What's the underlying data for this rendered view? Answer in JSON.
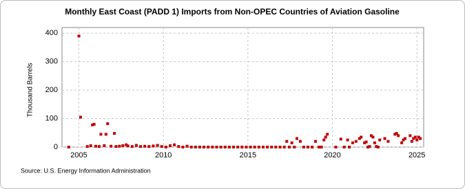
{
  "chart_data": {
    "type": "scatter",
    "title": "Monthly East Coast (PADD 1) Imports from Non-OPEC Countries of Aviation Gasoline",
    "y_label": "Thousand Barrels",
    "source": "Source: U.S. Energy Information Administration",
    "color": "#c00000",
    "grid": true,
    "xlim": [
      2004.0,
      2025.4
    ],
    "xticks": [
      2005,
      2010,
      2015,
      2020,
      2025
    ],
    "ylim": [
      0,
      420
    ],
    "yticks": [
      0,
      100,
      200,
      300,
      400
    ],
    "x": [
      2004.4,
      2005.0,
      2005.1,
      2005.5,
      2005.7,
      2005.8,
      2005.9,
      2006.0,
      2006.2,
      2006.3,
      2006.5,
      2006.6,
      2006.7,
      2006.9,
      2007.1,
      2007.2,
      2007.4,
      2007.6,
      2007.8,
      2007.9,
      2008.15,
      2008.4,
      2008.65,
      2008.9,
      2009.15,
      2009.4,
      2009.65,
      2009.9,
      2010.15,
      2010.4,
      2010.65,
      2010.9,
      2011.15,
      2011.4,
      2011.65,
      2011.9,
      2012.15,
      2012.4,
      2012.65,
      2012.9,
      2013.15,
      2013.4,
      2013.65,
      2013.9,
      2014.15,
      2014.4,
      2014.65,
      2014.9,
      2015.15,
      2015.4,
      2015.65,
      2015.9,
      2016.15,
      2016.4,
      2016.65,
      2016.9,
      2017.15,
      2017.3,
      2017.45,
      2017.6,
      2017.75,
      2017.9,
      2018.1,
      2018.3,
      2018.55,
      2018.8,
      2019.0,
      2019.2,
      2019.35,
      2019.5,
      2019.6,
      2019.7,
      2020.2,
      2020.5,
      2020.7,
      2020.9,
      2021.0,
      2021.2,
      2021.4,
      2021.6,
      2021.7,
      2021.9,
      2022.0,
      2022.1,
      2022.2,
      2022.3,
      2022.4,
      2022.5,
      2022.6,
      2022.7,
      2022.8,
      2023.1,
      2023.3,
      2023.7,
      2023.8,
      2023.9,
      2024.1,
      2024.2,
      2024.3,
      2024.6,
      2024.7,
      2024.8,
      2024.9,
      2025.0,
      2025.1,
      2025.2
    ],
    "values": [
      0,
      390,
      105,
      2,
      5,
      78,
      80,
      3,
      2,
      45,
      5,
      45,
      82,
      3,
      48,
      2,
      3,
      5,
      8,
      4,
      2,
      6,
      2,
      3,
      2,
      4,
      6,
      2,
      0,
      5,
      8,
      2,
      0,
      3,
      0,
      0,
      0,
      0,
      0,
      0,
      0,
      0,
      0,
      0,
      0,
      0,
      0,
      0,
      0,
      0,
      0,
      0,
      0,
      0,
      0,
      0,
      0,
      20,
      0,
      15,
      0,
      30,
      20,
      0,
      0,
      0,
      20,
      0,
      0,
      25,
      35,
      45,
      0,
      28,
      0,
      25,
      0,
      15,
      20,
      30,
      35,
      15,
      18,
      0,
      2,
      40,
      35,
      15,
      2,
      0,
      25,
      30,
      20,
      45,
      48,
      40,
      15,
      25,
      30,
      40,
      20,
      30,
      35,
      25,
      35,
      30
    ]
  }
}
